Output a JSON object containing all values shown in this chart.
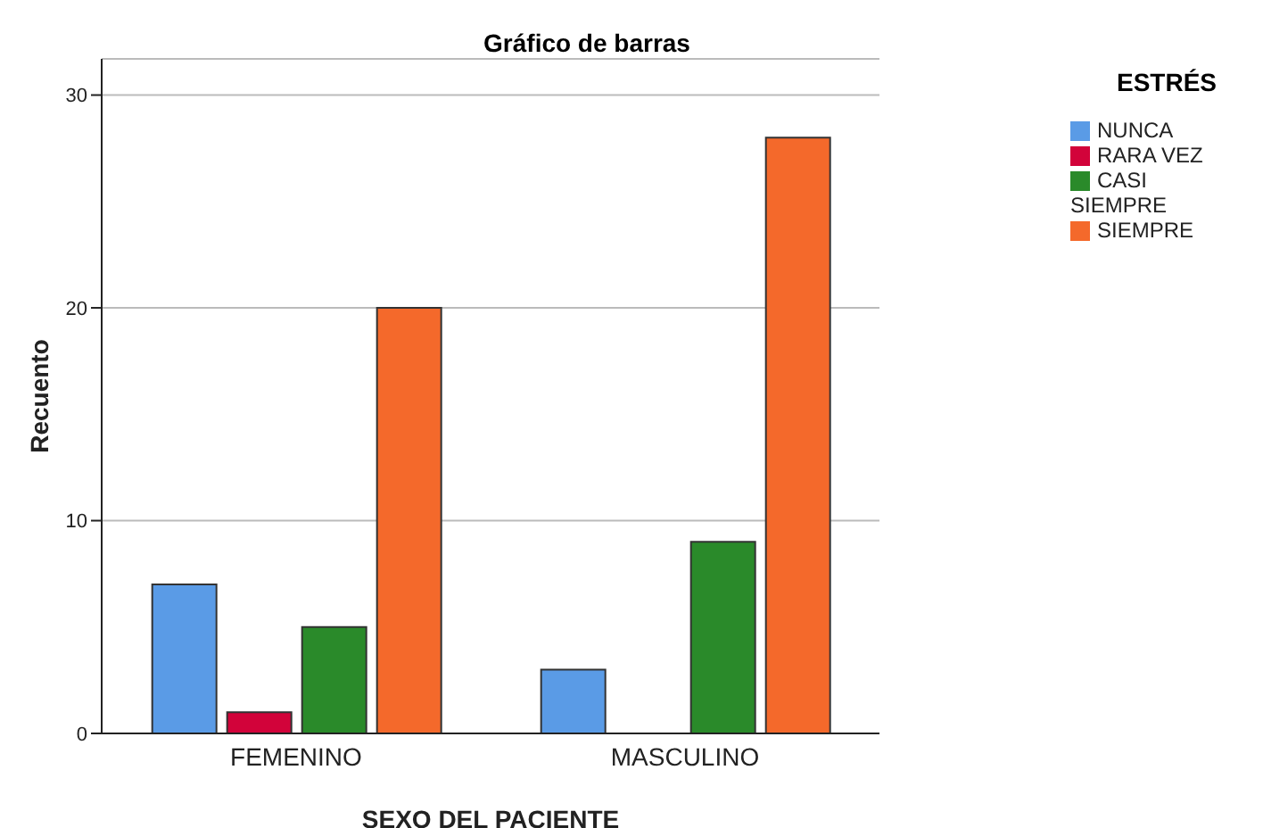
{
  "chart_data": {
    "type": "bar",
    "title": "Gráfico de barras",
    "xlabel": "SEXO DEL PACIENTE",
    "ylabel": "Recuento",
    "legend_title": "ESTRÉS",
    "categories": [
      "FEMENINO",
      "MASCULINO"
    ],
    "series": [
      {
        "name": "NUNCA",
        "color": "#5a9be6",
        "values": [
          7,
          3
        ]
      },
      {
        "name": "RARA VEZ",
        "color": "#d2033a",
        "values": [
          1,
          null
        ]
      },
      {
        "name": "CASI SIEMPRE",
        "color": "#2a8a2a",
        "values": [
          5,
          9
        ]
      },
      {
        "name": "SIEMPRE",
        "color": "#f4692b",
        "values": [
          20,
          28
        ]
      }
    ],
    "ylim": [
      0,
      31.7
    ],
    "yticks": [
      0,
      10,
      20,
      30
    ],
    "grid": "y",
    "legend": "top right"
  }
}
